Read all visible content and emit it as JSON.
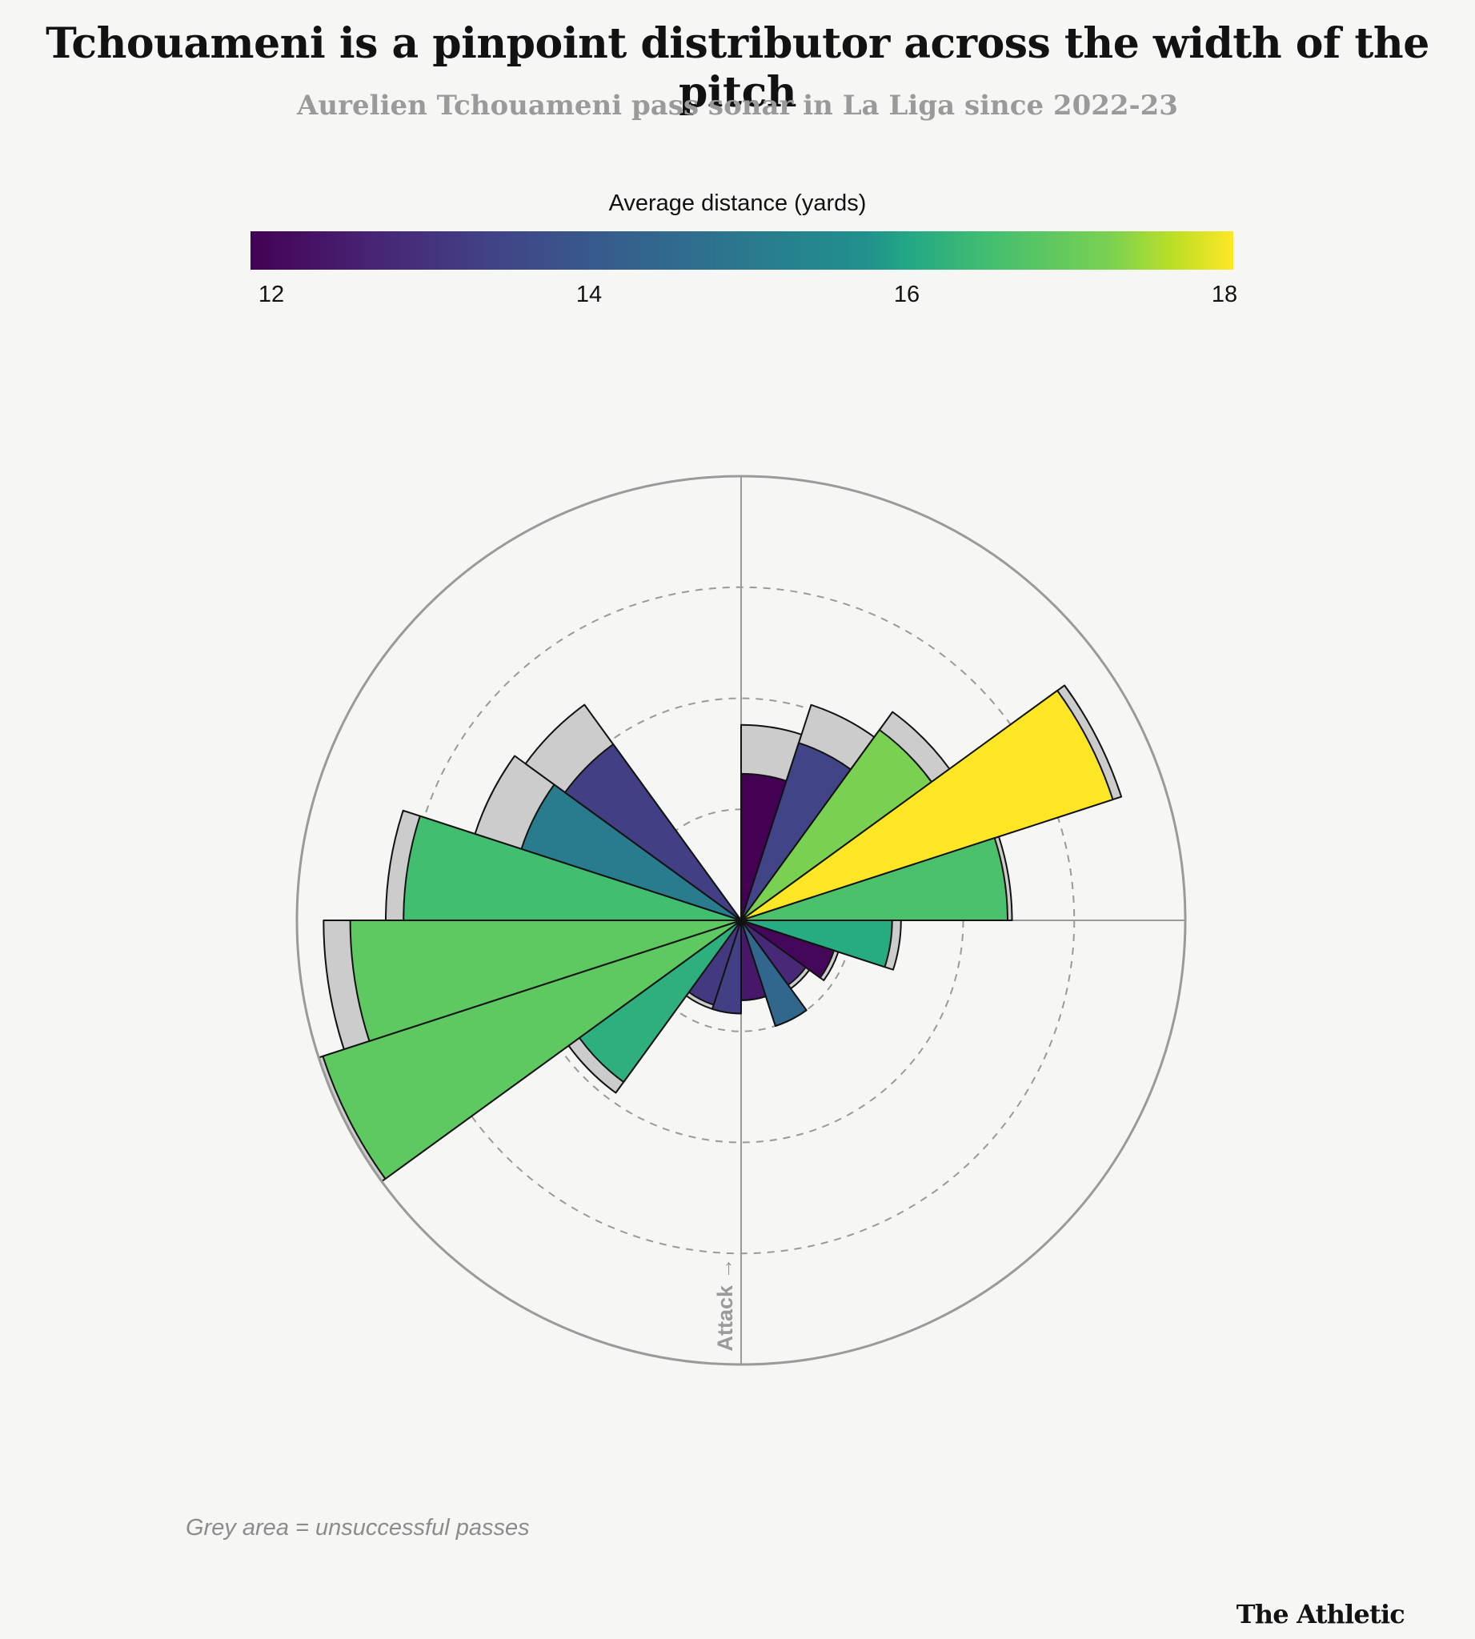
{
  "title": "Tchouameni is a pinpoint distributor across the width of the pitch",
  "subtitle": "Aurelien Tchouameni pass sonar in La Liga since 2022-23",
  "legend": {
    "title": "Average distance (yards)",
    "min": 12,
    "max": 18,
    "ticks": [
      "12",
      "14",
      "16",
      "18"
    ],
    "colors": [
      "#440154",
      "#482475",
      "#414487",
      "#355f8d",
      "#2a788e",
      "#21908d",
      "#22a884",
      "#42be71",
      "#7ad151",
      "#bddf26",
      "#fde725"
    ]
  },
  "note": "Grey area = unsuccessful passes",
  "brand": "The Athletic",
  "chart_data": {
    "type": "polar-bar",
    "title": "Tchouameni is a pinpoint distributor across the width of the pitch",
    "direction_label": "Attack →",
    "radial_scale_max": 1.0,
    "gridline_radii": [
      0.25,
      0.5,
      0.75
    ],
    "angle_unit": "degrees clockwise from top of sonar",
    "bin_width_deg": 18,
    "successful_color_scale": "viridis by average distance",
    "unsuccessful_color": "#cccccc",
    "bins": [
      {
        "start_angle": 0,
        "successful": 0.33,
        "total": 0.44,
        "avg_distance": 12.0
      },
      {
        "start_angle": 18,
        "successful": 0.42,
        "total": 0.51,
        "avg_distance": 13.2
      },
      {
        "start_angle": 36,
        "successful": 0.53,
        "total": 0.58,
        "avg_distance": 16.8
      },
      {
        "start_angle": 54,
        "successful": 0.88,
        "total": 0.9,
        "avg_distance": 18.0
      },
      {
        "start_angle": 72,
        "successful": 0.6,
        "total": 0.61,
        "avg_distance": 16.3
      },
      {
        "start_angle": 90,
        "successful": 0.34,
        "total": 0.36,
        "avg_distance": 15.7
      },
      {
        "start_angle": 108,
        "successful": 0.22,
        "total": 0.23,
        "avg_distance": 12.1
      },
      {
        "start_angle": 126,
        "successful": 0.18,
        "total": 0.19,
        "avg_distance": 12.7
      },
      {
        "start_angle": 144,
        "successful": 0.25,
        "total": 0.25,
        "avg_distance": 14.0
      },
      {
        "start_angle": 162,
        "successful": 0.18,
        "total": 0.18,
        "avg_distance": 12.4
      },
      {
        "start_angle": 180,
        "successful": 0.21,
        "total": 0.21,
        "avg_distance": 13.1
      },
      {
        "start_angle": 198,
        "successful": 0.2,
        "total": 0.21,
        "avg_distance": 13.0
      },
      {
        "start_angle": 216,
        "successful": 0.45,
        "total": 0.48,
        "avg_distance": 15.8
      },
      {
        "start_angle": 234,
        "successful": 0.99,
        "total": 1.0,
        "avg_distance": 16.5
      },
      {
        "start_angle": 252,
        "successful": 0.88,
        "total": 0.94,
        "avg_distance": 16.5
      },
      {
        "start_angle": 270,
        "successful": 0.76,
        "total": 0.8,
        "avg_distance": 16.2
      },
      {
        "start_angle": 288,
        "successful": 0.52,
        "total": 0.63,
        "avg_distance": 14.5
      },
      {
        "start_angle": 306,
        "successful": 0.49,
        "total": 0.6,
        "avg_distance": 13.1
      }
    ]
  }
}
